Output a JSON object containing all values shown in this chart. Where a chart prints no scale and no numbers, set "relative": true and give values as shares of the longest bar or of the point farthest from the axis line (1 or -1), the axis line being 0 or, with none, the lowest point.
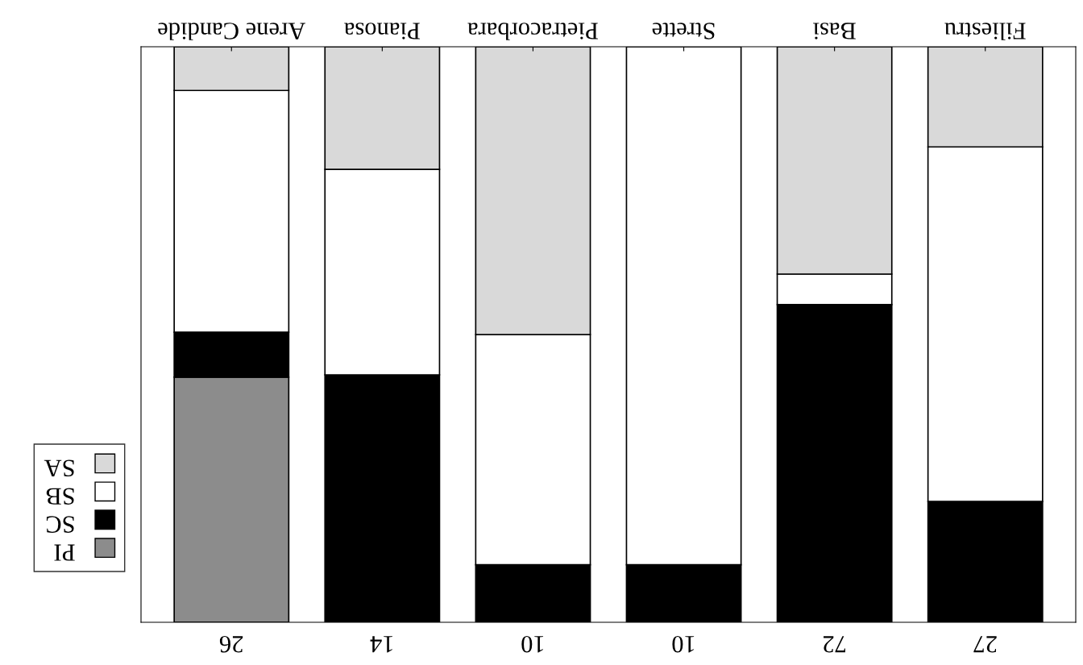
{
  "chart_data": {
    "type": "bar",
    "stacked": true,
    "relative": true,
    "categories": [
      "Arene Candide",
      "Pianosa",
      "Pietracorbara",
      "Strette",
      "Basi",
      "Filiestru"
    ],
    "series": [
      {
        "name": "PI",
        "color": "#8c8c8c",
        "values": [
          0.426,
          null,
          null,
          null,
          null,
          null
        ]
      },
      {
        "name": "SC",
        "color": "#000000",
        "values": [
          0.078,
          0.43,
          0.1,
          0.1,
          0.552,
          0.21
        ]
      },
      {
        "name": "SB",
        "color": "#ffffff",
        "values": [
          0.42,
          0.357,
          0.4,
          0.9,
          0.053,
          0.616
        ]
      },
      {
        "name": "SA",
        "color": "#d9d9d9",
        "values": [
          0.076,
          0.213,
          0.5,
          null,
          0.395,
          0.174
        ]
      }
    ],
    "annotations": [
      "26",
      "14",
      "10",
      "10",
      "72",
      "27"
    ],
    "legend": "left",
    "tick_labels": "x",
    "grid": false
  }
}
